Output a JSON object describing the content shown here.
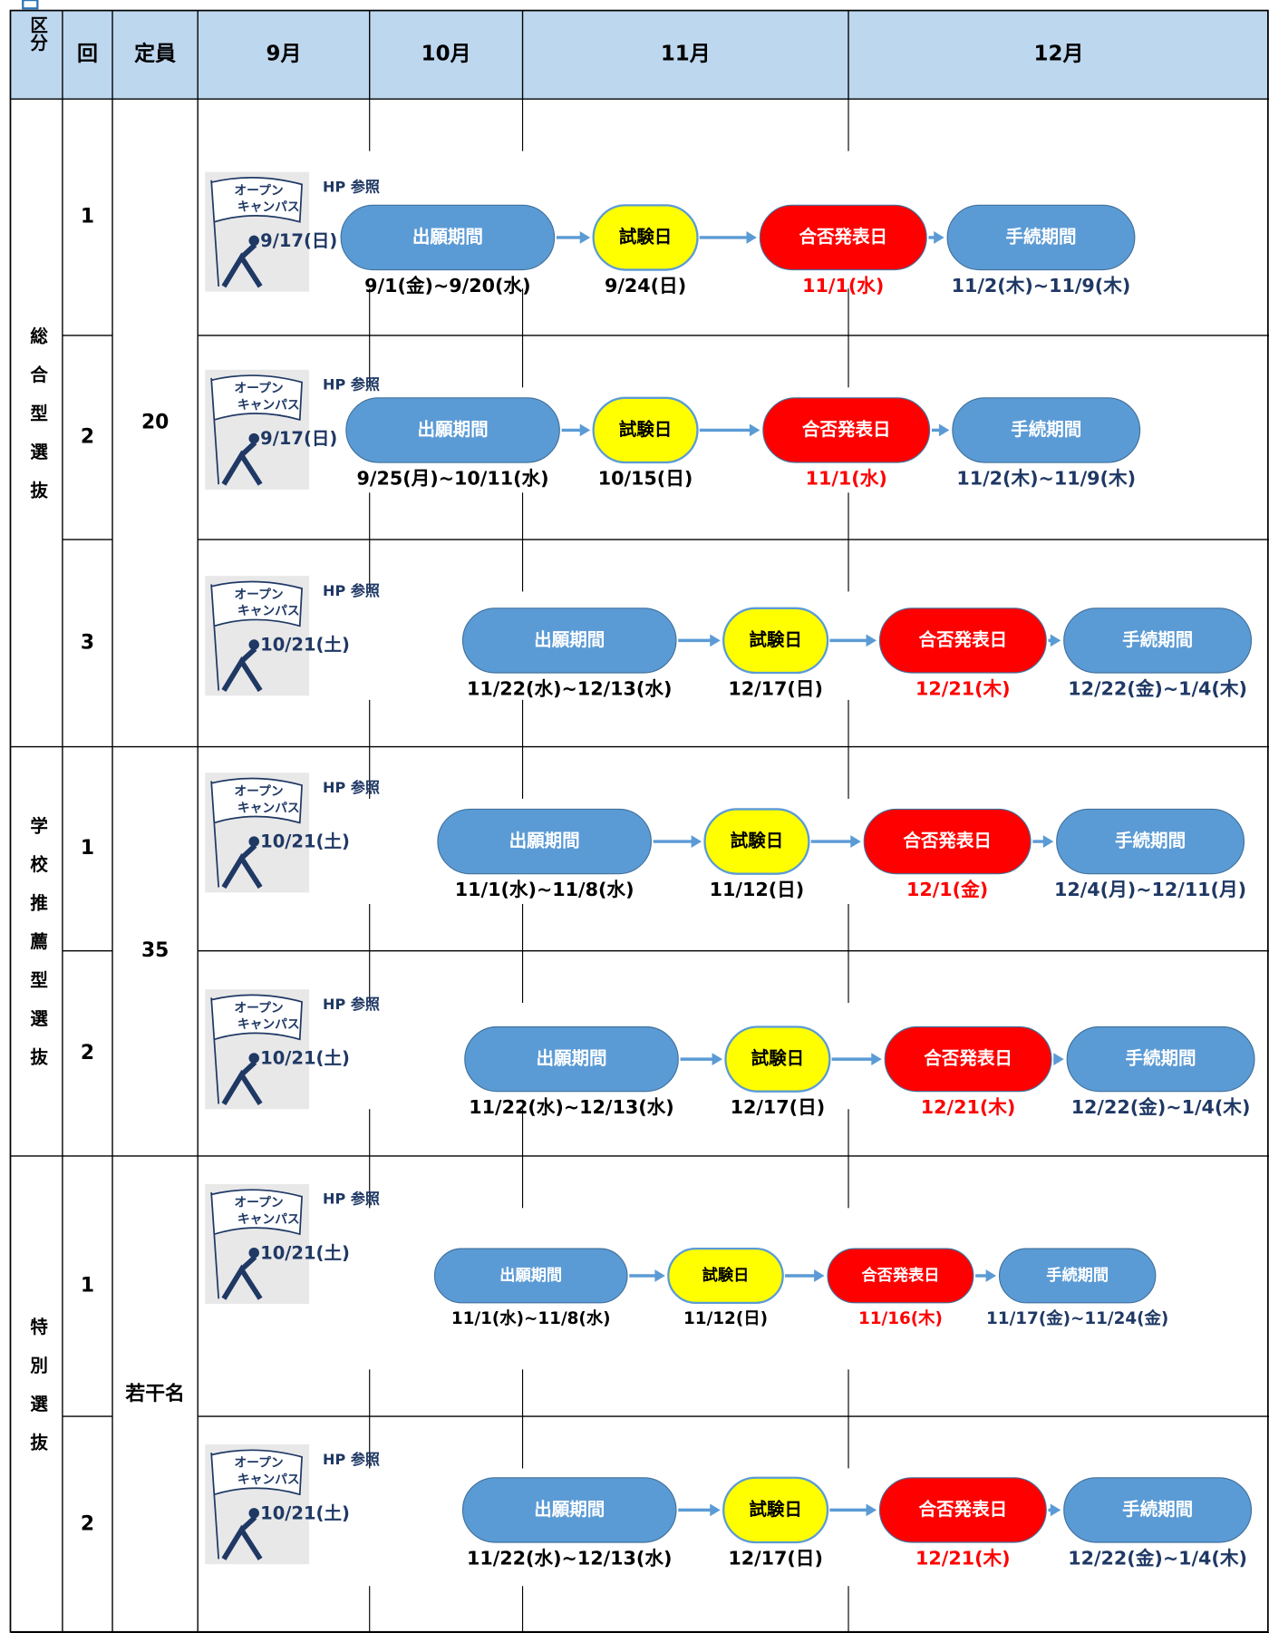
{
  "header": [
    "区分",
    "回",
    "定員",
    "9月",
    "10月",
    "11月",
    "12月"
  ],
  "sections": [
    {
      "label": "総合型選抜",
      "capacity": 20,
      "rows": [
        {
          "round": 1,
          "open_campus": {
            "line1": "オープン",
            "line2": "キャンパス",
            "date": "9/17(日)"
          },
          "note": "HP 参照",
          "steps": [
            {
              "label": "出願期間",
              "date": "9/1(金)~9/20(水)"
            },
            {
              "label": "試験日",
              "date": "9/24(日)"
            },
            {
              "label": "合否発表日",
              "date": "11/1(水)"
            },
            {
              "label": "手続期間",
              "date": "11/2(木)~11/9(木)"
            }
          ]
        },
        {
          "round": 2,
          "open_campus": {
            "line1": "オープン",
            "line2": "キャンパス",
            "date": "9/17(日)"
          },
          "note": "HP 参照",
          "steps": [
            {
              "label": "出願期間",
              "date": "9/25(月)~10/11(水)"
            },
            {
              "label": "試験日",
              "date": "10/15(日)"
            },
            {
              "label": "合否発表日",
              "date": "11/1(水)"
            },
            {
              "label": "手続期間",
              "date": "11/2(木)~11/9(木)"
            }
          ]
        },
        {
          "round": 3,
          "open_campus": {
            "line1": "オープン",
            "line2": "キャンパス",
            "date": "10/21(土)"
          },
          "note": "HP 参照",
          "steps": [
            {
              "label": "出願期間",
              "date": "11/22(水)~12/13(水)"
            },
            {
              "label": "試験日",
              "date": "12/17(日)"
            },
            {
              "label": "合否発表日",
              "date": "12/21(木)"
            },
            {
              "label": "手続期間",
              "date": "12/22(金)~1/4(木)"
            }
          ]
        }
      ]
    },
    {
      "label": "学校推薦型選抜",
      "capacity": 35,
      "rows": [
        {
          "round": 1,
          "open_campus": {
            "line1": "オープン",
            "line2": "キャンパス",
            "date": "10/21(土)"
          },
          "note": "HP 参照",
          "steps": [
            {
              "label": "出願期間",
              "date": "11/1(水)~11/8(水)"
            },
            {
              "label": "試験日",
              "date": "11/12(日)"
            },
            {
              "label": "合否発表日",
              "date": "12/1(金)"
            },
            {
              "label": "手続期間",
              "date": "12/4(月)~12/11(月)"
            }
          ]
        },
        {
          "round": 2,
          "open_campus": {
            "line1": "オープン",
            "line2": "キャンパス",
            "date": "10/21(土)"
          },
          "note": "HP 参照",
          "steps": [
            {
              "label": "出願期間",
              "date": "11/22(水)~12/13(水)"
            },
            {
              "label": "試験日",
              "date": "12/17(日)"
            },
            {
              "label": "合否発表日",
              "date": "12/21(木)"
            },
            {
              "label": "手続期間",
              "date": "12/22(金)~1/4(木)"
            }
          ]
        }
      ]
    },
    {
      "label": "特別選抜",
      "capacity": "若干名",
      "rows": [
        {
          "round": 1,
          "open_campus": {
            "line1": "オープン",
            "line2": "キャンパス",
            "date": "10/21(土)"
          },
          "note": "HP 参照",
          "steps": [
            {
              "label": "出願期間",
              "date": "11/1(水)~11/8(水)"
            },
            {
              "label": "試験日",
              "date": "11/12(日)"
            },
            {
              "label": "合否発表日",
              "date": "11/16(木)"
            },
            {
              "label": "手続期間",
              "date": "11/17(金)~11/24(金)"
            }
          ]
        },
        {
          "round": 2,
          "open_campus": {
            "line1": "オープン",
            "line2": "キャンパス",
            "date": "10/21(土)"
          },
          "note": "HP 参照",
          "steps": [
            {
              "label": "出願期間",
              "date": "11/22(水)~12/13(水)"
            },
            {
              "label": "試験日",
              "date": "12/17(日)"
            },
            {
              "label": "合否発表日",
              "date": "12/21(木)"
            },
            {
              "label": "手続期間",
              "date": "12/22(金)~1/4(木)"
            }
          ]
        }
      ]
    }
  ]
}
